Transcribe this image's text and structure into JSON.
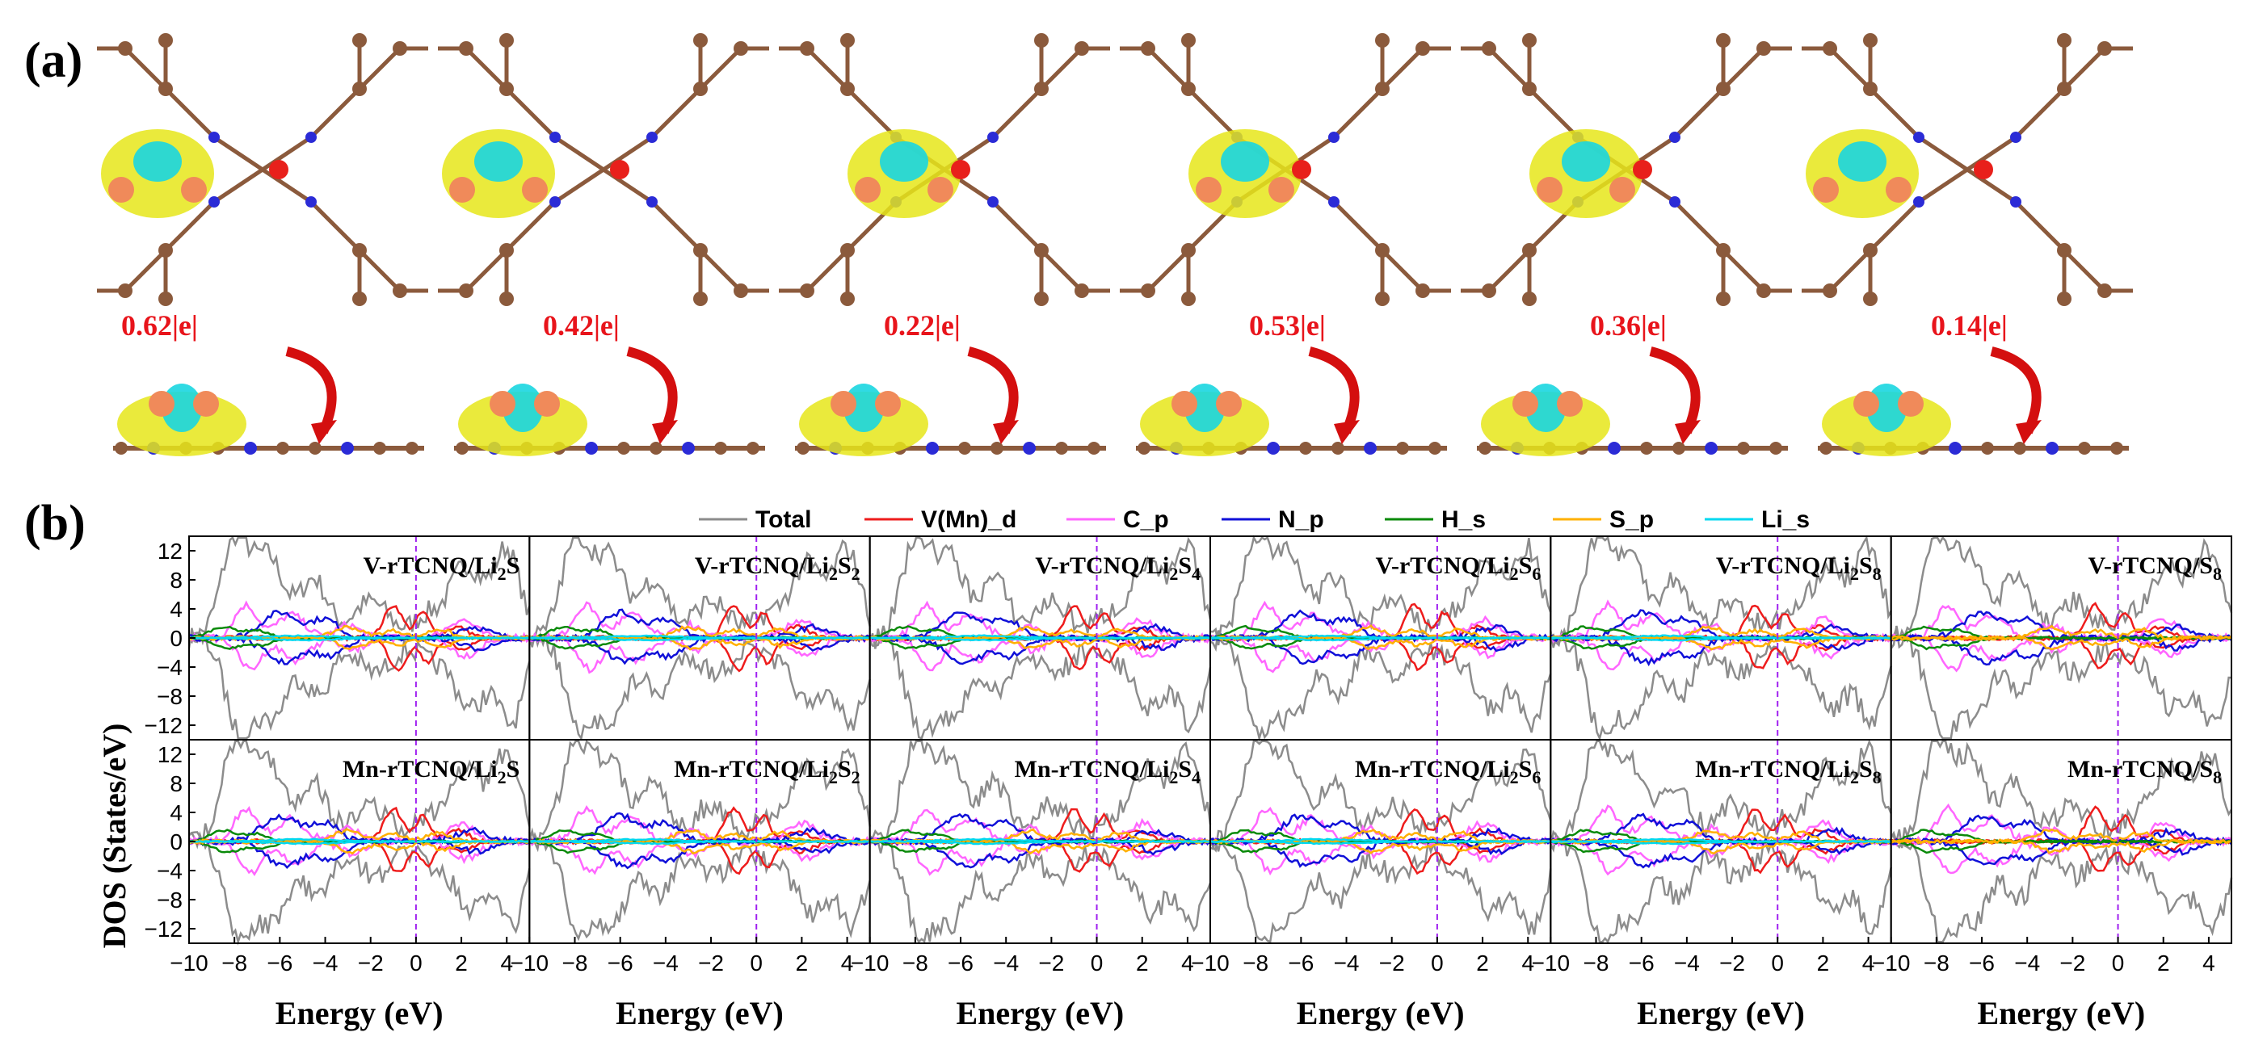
{
  "figure": {
    "panel_a_label": "(a)",
    "panel_b_label": "(b)"
  },
  "panel_a": {
    "charge_transfers": [
      "0.62|e|",
      "0.42|e|",
      "0.22|e|",
      "0.53|e|",
      "0.36|e|",
      "0.14|e|"
    ],
    "colors": {
      "carbon": "#8b5a3c",
      "nitrogen": "#2b2bd6",
      "hydrogen": "#f2c6c6",
      "metal": "#e8201b",
      "lithium": "#f08a5a",
      "sulfur": "#1e7fd6",
      "density_yellow": "#e6e61a",
      "density_cyan": "#1ad6e0",
      "arrow": "#d40f0f"
    }
  },
  "chart_data": {
    "type": "line",
    "legend": [
      "Total",
      "V(Mn)_d",
      "C_p",
      "N_p",
      "H_s",
      "S_p",
      "Li_s"
    ],
    "legend_colors": [
      "#8c8c8c",
      "#ee1c1c",
      "#ff66ff",
      "#1010d8",
      "#0a8a0a",
      "#ffb000",
      "#00d8f0"
    ],
    "xlabel": "Energy (eV)",
    "ylabel": "DOS (States/eV)",
    "xlim": [
      -10,
      5
    ],
    "ylim": [
      -14,
      14
    ],
    "xticks": [
      "−10",
      "−8",
      "−6",
      "−4",
      "−2",
      "0",
      "2",
      "4"
    ],
    "yticks": [
      "12",
      "8",
      "4",
      "0",
      "−4",
      "−8",
      "−12"
    ],
    "fermi_level": 0,
    "rows": [
      {
        "metal": "V",
        "panels": [
          {
            "prefix": "V-rTCNQ/Li",
            "sub": "2",
            "post": "S",
            "sub2": ""
          },
          {
            "prefix": "V-rTCNQ/Li",
            "sub": "2",
            "post": "S",
            "sub2": "2"
          },
          {
            "prefix": "V-rTCNQ/Li",
            "sub": "2",
            "post": "S",
            "sub2": "4"
          },
          {
            "prefix": "V-rTCNQ/Li",
            "sub": "2",
            "post": "S",
            "sub2": "6"
          },
          {
            "prefix": "V-rTCNQ/Li",
            "sub": "2",
            "post": "S",
            "sub2": "8"
          },
          {
            "prefix": "V-rTCNQ/S",
            "sub": "8",
            "post": "",
            "sub2": ""
          }
        ]
      },
      {
        "metal": "Mn",
        "panels": [
          {
            "prefix": "Mn-rTCNQ/Li",
            "sub": "2",
            "post": "S",
            "sub2": ""
          },
          {
            "prefix": "Mn-rTCNQ/Li",
            "sub": "2",
            "post": "S",
            "sub2": "2"
          },
          {
            "prefix": "Mn-rTCNQ/Li",
            "sub": "2",
            "post": "S",
            "sub2": "4"
          },
          {
            "prefix": "Mn-rTCNQ/Li",
            "sub": "2",
            "post": "S",
            "sub2": "6"
          },
          {
            "prefix": "Mn-rTCNQ/Li",
            "sub": "2",
            "post": "S",
            "sub2": "8"
          },
          {
            "prefix": "Mn-rTCNQ/S",
            "sub": "8",
            "post": "",
            "sub2": ""
          }
        ]
      }
    ]
  }
}
